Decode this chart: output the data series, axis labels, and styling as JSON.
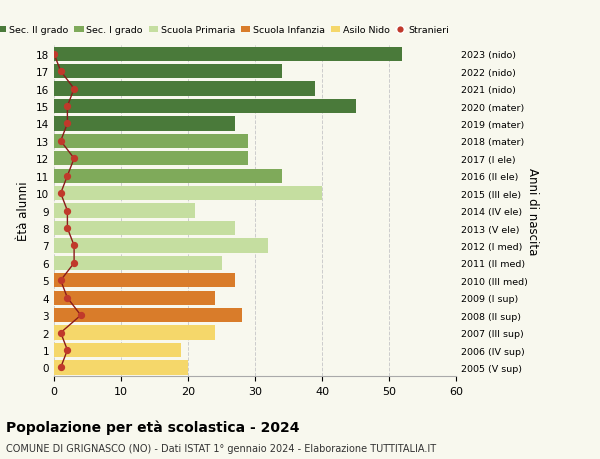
{
  "ages": [
    18,
    17,
    16,
    15,
    14,
    13,
    12,
    11,
    10,
    9,
    8,
    7,
    6,
    5,
    4,
    3,
    2,
    1,
    0
  ],
  "values": [
    52,
    34,
    39,
    45,
    27,
    29,
    29,
    34,
    40,
    21,
    27,
    32,
    25,
    27,
    24,
    28,
    24,
    19,
    20
  ],
  "stranieri": [
    0,
    1,
    3,
    2,
    2,
    1,
    3,
    2,
    1,
    2,
    2,
    3,
    3,
    1,
    2,
    4,
    1,
    2,
    1
  ],
  "right_labels": [
    "2005 (V sup)",
    "2006 (IV sup)",
    "2007 (III sup)",
    "2008 (II sup)",
    "2009 (I sup)",
    "2010 (III med)",
    "2011 (II med)",
    "2012 (I med)",
    "2013 (V ele)",
    "2014 (IV ele)",
    "2015 (III ele)",
    "2016 (II ele)",
    "2017 (I ele)",
    "2018 (mater)",
    "2019 (mater)",
    "2020 (mater)",
    "2021 (nido)",
    "2022 (nido)",
    "2023 (nido)"
  ],
  "bar_colors": [
    "#4a7a3a",
    "#4a7a3a",
    "#4a7a3a",
    "#4a7a3a",
    "#4a7a3a",
    "#7faa5a",
    "#7faa5a",
    "#7faa5a",
    "#c5dea0",
    "#c5dea0",
    "#c5dea0",
    "#c5dea0",
    "#c5dea0",
    "#d97c2a",
    "#d97c2a",
    "#d97c2a",
    "#f5d76a",
    "#f5d76a",
    "#f5d76a"
  ],
  "legend_labels": [
    "Sec. II grado",
    "Sec. I grado",
    "Scuola Primaria",
    "Scuola Infanzia",
    "Asilo Nido",
    "Stranieri"
  ],
  "legend_colors": [
    "#4a7a3a",
    "#7faa5a",
    "#c5dea0",
    "#d97c2a",
    "#f5d76a",
    "#c0392b"
  ],
  "ylabel_text": "Ètà alunni",
  "right_ylabel_text": "Anni di nascita",
  "title": "Popolazione per età scolastica - 2024",
  "subtitle": "COMUNE DI GRIGNASCO (NO) - Dati ISTAT 1° gennaio 2024 - Elaborazione TUTTITALIA.IT",
  "xlim": [
    0,
    60
  ],
  "xticks": [
    0,
    10,
    20,
    30,
    40,
    50,
    60
  ],
  "bg_color": "#f8f8ee",
  "stranieri_color": "#c0392b",
  "stranieri_line_color": "#8b1a1a"
}
